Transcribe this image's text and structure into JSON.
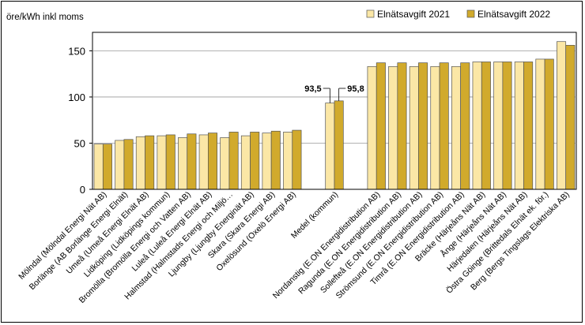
{
  "chart_data": {
    "type": "bar",
    "ylabel": "öre/kWh inkl moms",
    "ylim": [
      0,
      170
    ],
    "yticks": [
      0,
      50,
      100,
      150
    ],
    "grid": true,
    "legend_position": "top-right",
    "colors": {
      "2021": "#FBE7A6",
      "2022": "#D1AA2C"
    },
    "series": [
      {
        "name": "Elnätsavgift 2021",
        "key": "2021"
      },
      {
        "name": "Elnätsavgift 2022",
        "key": "2022"
      }
    ],
    "categories": [
      {
        "label": "Mölndal (Mölndal Energi Nät AB)",
        "v2021": 49,
        "v2022": 49
      },
      {
        "label": "Borlänge (AB Borlänge Energi Elnät)",
        "v2021": 53,
        "v2022": 54
      },
      {
        "label": "Umeå (Umeå Energi Elnät AB)",
        "v2021": 57,
        "v2022": 58
      },
      {
        "label": "Lidköping (Lidköpings kommun)",
        "v2021": 58,
        "v2022": 59
      },
      {
        "label": "Bromölla (Bromölla Energi och Vatten AB)",
        "v2021": 56,
        "v2022": 60
      },
      {
        "label": "Luleå (Luleå Energi Elnät AB)",
        "v2021": 59,
        "v2022": 61
      },
      {
        "label": "Halmstad (Halmstads Energi och Miljö…",
        "v2021": 56,
        "v2022": 62
      },
      {
        "label": "Ljungby (Ljungby Energinät AB)",
        "v2021": 58,
        "v2022": 62
      },
      {
        "label": "Skara (Skara Energi AB)",
        "v2021": 61,
        "v2022": 63
      },
      {
        "label": "Oxelösund (Oxelö Energi AB)",
        "v2021": 62,
        "v2022": 64
      },
      {
        "label": "",
        "gap": true
      },
      {
        "label": "Medel (kommun)",
        "v2021": 93.5,
        "v2022": 95.8,
        "labels": [
          "93,5",
          "95,8"
        ]
      },
      {
        "label": "",
        "gap": true
      },
      {
        "label": "Nordanstig (E.ON Energidistribution AB)",
        "v2021": 133,
        "v2022": 137
      },
      {
        "label": "Ragunda (E.ON Energidistribution AB)",
        "v2021": 133,
        "v2022": 137
      },
      {
        "label": "Sollefteå (E.ON Energidistribution AB)",
        "v2021": 133,
        "v2022": 137
      },
      {
        "label": "Strömsund (E.ON Energidistribution AB)",
        "v2021": 133,
        "v2022": 137
      },
      {
        "label": "Timrå (E.ON Energidistribution AB)",
        "v2021": 133,
        "v2022": 137
      },
      {
        "label": "Bräcke (Härjeåns Nät AB)",
        "v2021": 138,
        "v2022": 138
      },
      {
        "label": "Ånge (Härjeåns Nät AB)",
        "v2021": 138,
        "v2022": 138
      },
      {
        "label": "Härjedalen (Härjeåns Nät AB)",
        "v2021": 138,
        "v2022": 138
      },
      {
        "label": "Östra Göinge (Brittedals Elnät ek. för.)",
        "v2021": 141,
        "v2022": 141
      },
      {
        "label": "Berg (Bergs Tingslags Elektriska AB)",
        "v2021": 160,
        "v2022": 156
      }
    ]
  }
}
